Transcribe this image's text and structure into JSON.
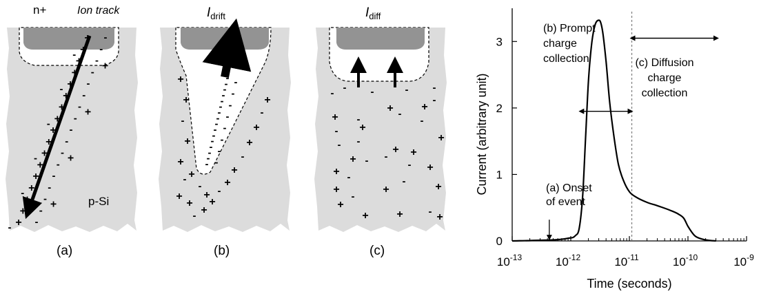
{
  "panel_a": {
    "n_label": "n+",
    "track_label": "Ion track",
    "substrate_label": "p-Si",
    "caption": "(a)"
  },
  "panel_b": {
    "current_main": "I",
    "current_sub": "drift",
    "caption": "(b)"
  },
  "panel_c": {
    "current_main": "I",
    "current_sub": "diff",
    "caption": "(c)"
  },
  "colors": {
    "substrate": "#dcdcdc",
    "contact": "#939393",
    "depletion": "#ffffff",
    "ink": "#000000"
  },
  "chart_data": {
    "type": "line",
    "xlabel": "Time (seconds)",
    "ylabel": "Current (arbitrary unit)",
    "x_scale": "log",
    "xlim": [
      1e-13,
      1e-09
    ],
    "ylim": [
      0,
      3.5
    ],
    "x_ticks": [
      {
        "value": 1e-13,
        "base": "10",
        "exp": "-13"
      },
      {
        "value": 1e-12,
        "base": "10",
        "exp": "-12"
      },
      {
        "value": 1e-11,
        "base": "10",
        "exp": "-11"
      },
      {
        "value": 1e-10,
        "base": "10",
        "exp": "-10"
      },
      {
        "value": 1e-09,
        "base": "10",
        "exp": "-9"
      }
    ],
    "y_ticks": [
      "0",
      "1",
      "2",
      "3"
    ],
    "grid": false,
    "series": [
      {
        "x": [
          1e-13,
          3e-13,
          6e-13,
          9e-13,
          1.2e-12,
          1.4e-12,
          1.6e-12,
          1.8e-12,
          2e-12,
          2.3e-12,
          2.6e-12,
          3e-12,
          3.2e-12,
          3.5e-12,
          4e-12,
          4.6e-12,
          5.5e-12,
          6.5e-12,
          8e-12,
          1e-11,
          1.3e-11,
          2e-11,
          3e-11,
          5e-11,
          7e-11,
          8.5e-11,
          1e-10,
          1.3e-10,
          1.7e-10,
          2.2e-10,
          3e-10
        ],
        "y": [
          0.0,
          0.01,
          0.02,
          0.04,
          0.08,
          0.2,
          0.7,
          1.6,
          2.4,
          3.0,
          3.25,
          3.32,
          3.3,
          3.15,
          2.7,
          2.1,
          1.55,
          1.15,
          0.9,
          0.74,
          0.66,
          0.58,
          0.53,
          0.46,
          0.4,
          0.34,
          0.22,
          0.08,
          0.03,
          0.01,
          0.0
        ]
      }
    ],
    "annotations": {
      "onset_line1": "(a) Onset",
      "onset_line2": "of event",
      "onset_x": 4.3e-13,
      "prompt_line1": "(b) Prompt",
      "prompt_line2": "charge",
      "prompt_line3": "collection",
      "prompt_range": [
        1.6e-12,
        1.1e-11
      ],
      "prompt_level": 1.95,
      "diffusion_line1": "(c) Diffusion",
      "diffusion_line2": "charge",
      "diffusion_line3": "collection",
      "diffusion_range": [
        1.1e-11,
        3.2e-10
      ],
      "diffusion_level": 3.05,
      "divider_x": 1.1e-11
    }
  }
}
